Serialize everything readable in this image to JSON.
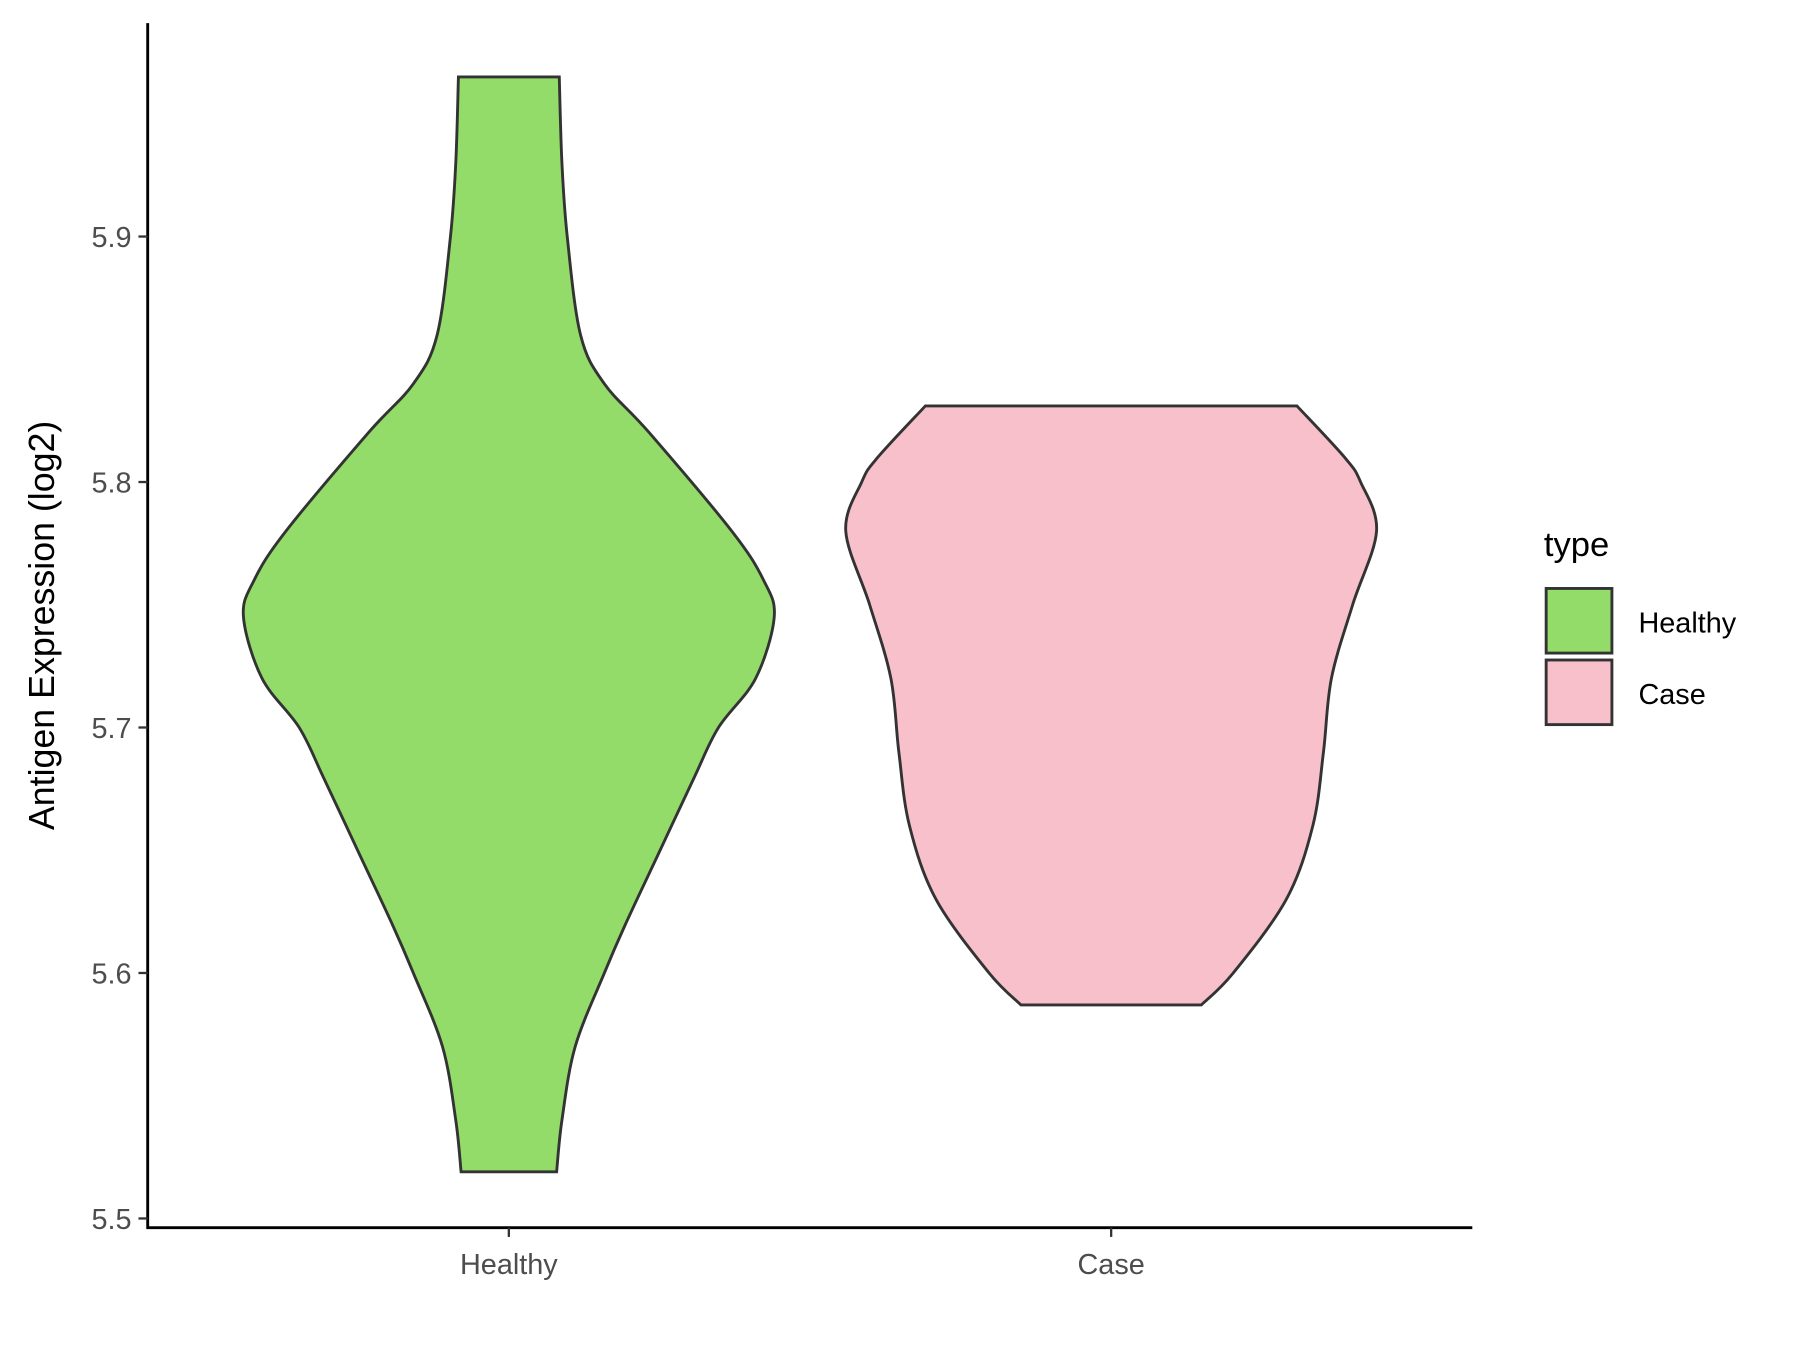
{
  "chart_data": {
    "type": "violin",
    "title": "",
    "xlabel": "",
    "ylabel": "Antigen Expression (log2)",
    "ylim": [
      5.495,
      5.985
    ],
    "yticks": [
      5.5,
      5.6,
      5.7,
      5.8,
      5.9
    ],
    "ytick_labels": [
      "5.5",
      "5.6",
      "5.7",
      "5.8",
      "5.9"
    ],
    "categories": [
      "Healthy",
      "Case"
    ],
    "grid": false,
    "legend": {
      "title": "type",
      "position": "right",
      "entries": [
        "Healthy",
        "Case"
      ]
    },
    "series": [
      {
        "name": "Healthy",
        "color": "#94DC6A",
        "min": 5.519,
        "max": 5.965,
        "profile": [
          [
            5.965,
            0.19
          ],
          [
            5.93,
            0.2
          ],
          [
            5.9,
            0.22
          ],
          [
            5.86,
            0.27
          ],
          [
            5.84,
            0.36
          ],
          [
            5.82,
            0.53
          ],
          [
            5.78,
            0.84
          ],
          [
            5.76,
            0.96
          ],
          [
            5.745,
            1.0
          ],
          [
            5.72,
            0.93
          ],
          [
            5.7,
            0.79
          ],
          [
            5.68,
            0.7
          ],
          [
            5.65,
            0.57
          ],
          [
            5.62,
            0.44
          ],
          [
            5.6,
            0.36
          ],
          [
            5.57,
            0.25
          ],
          [
            5.54,
            0.2
          ],
          [
            5.519,
            0.18
          ]
        ]
      },
      {
        "name": "Case",
        "color": "#F8C0CB",
        "min": 5.587,
        "max": 5.831,
        "profile": [
          [
            5.831,
            0.7
          ],
          [
            5.81,
            0.88
          ],
          [
            5.8,
            0.94
          ],
          [
            5.78,
            1.0
          ],
          [
            5.75,
            0.91
          ],
          [
            5.72,
            0.83
          ],
          [
            5.69,
            0.8
          ],
          [
            5.66,
            0.76
          ],
          [
            5.63,
            0.66
          ],
          [
            5.6,
            0.46
          ],
          [
            5.587,
            0.34
          ]
        ]
      }
    ]
  }
}
